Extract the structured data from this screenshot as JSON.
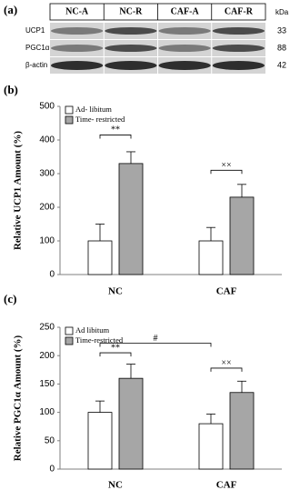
{
  "panel_a": {
    "label": "(a)",
    "kda_label": "kDa",
    "lanes": [
      "NC-A",
      "NC-R",
      "CAF-A",
      "CAF-R"
    ],
    "rows": [
      {
        "name": "UCP1",
        "kda": "33"
      },
      {
        "name": "PGC1α",
        "kda": "88"
      },
      {
        "name": "β-actin",
        "kda": "42"
      }
    ]
  },
  "chart_data": [
    {
      "type": "bar",
      "panel": "(b)",
      "y_label": "Relative UCP1 Amount (%)",
      "categories": [
        "NC",
        "CAF"
      ],
      "series": [
        {
          "name": "Ad- libitum",
          "color": "#ffffff",
          "values": [
            100,
            100
          ],
          "errors": [
            50,
            40
          ]
        },
        {
          "name": "Time- restricted",
          "color": "#a6a6a6",
          "values": [
            330,
            230
          ],
          "errors": [
            35,
            38
          ]
        }
      ],
      "ylim": [
        0,
        500
      ],
      "yticks": [
        0,
        100,
        200,
        300,
        400,
        500
      ],
      "legend": "upper left",
      "annotations": [
        {
          "text": "**",
          "y": 415,
          "between": [
            [
              0,
              0
            ],
            [
              1,
              0
            ]
          ]
        },
        {
          "text": "××",
          "y": 310,
          "between": [
            [
              0,
              1
            ],
            [
              1,
              1
            ]
          ]
        }
      ]
    },
    {
      "type": "bar",
      "panel": "(c)",
      "y_label": "Relative PGC1α Amount (%)",
      "categories": [
        "NC",
        "CAF"
      ],
      "series": [
        {
          "name": "Ad libitum",
          "color": "#ffffff",
          "values": [
            100,
            80
          ],
          "errors": [
            20,
            17
          ]
        },
        {
          "name": "Time-restricted",
          "color": "#a6a6a6",
          "values": [
            160,
            135
          ],
          "errors": [
            25,
            20
          ]
        }
      ],
      "ylim": [
        0,
        250
      ],
      "yticks": [
        0,
        50,
        100,
        150,
        200,
        250
      ],
      "legend": "upper left",
      "annotations": [
        {
          "text": "**",
          "y": 205,
          "between": [
            [
              0,
              0
            ],
            [
              1,
              0
            ]
          ]
        },
        {
          "text": "#",
          "y": 222,
          "between": [
            [
              0,
              0
            ],
            [
              0,
              1
            ]
          ]
        },
        {
          "text": "××",
          "y": 178,
          "between": [
            [
              0,
              1
            ],
            [
              1,
              1
            ]
          ]
        }
      ]
    }
  ]
}
